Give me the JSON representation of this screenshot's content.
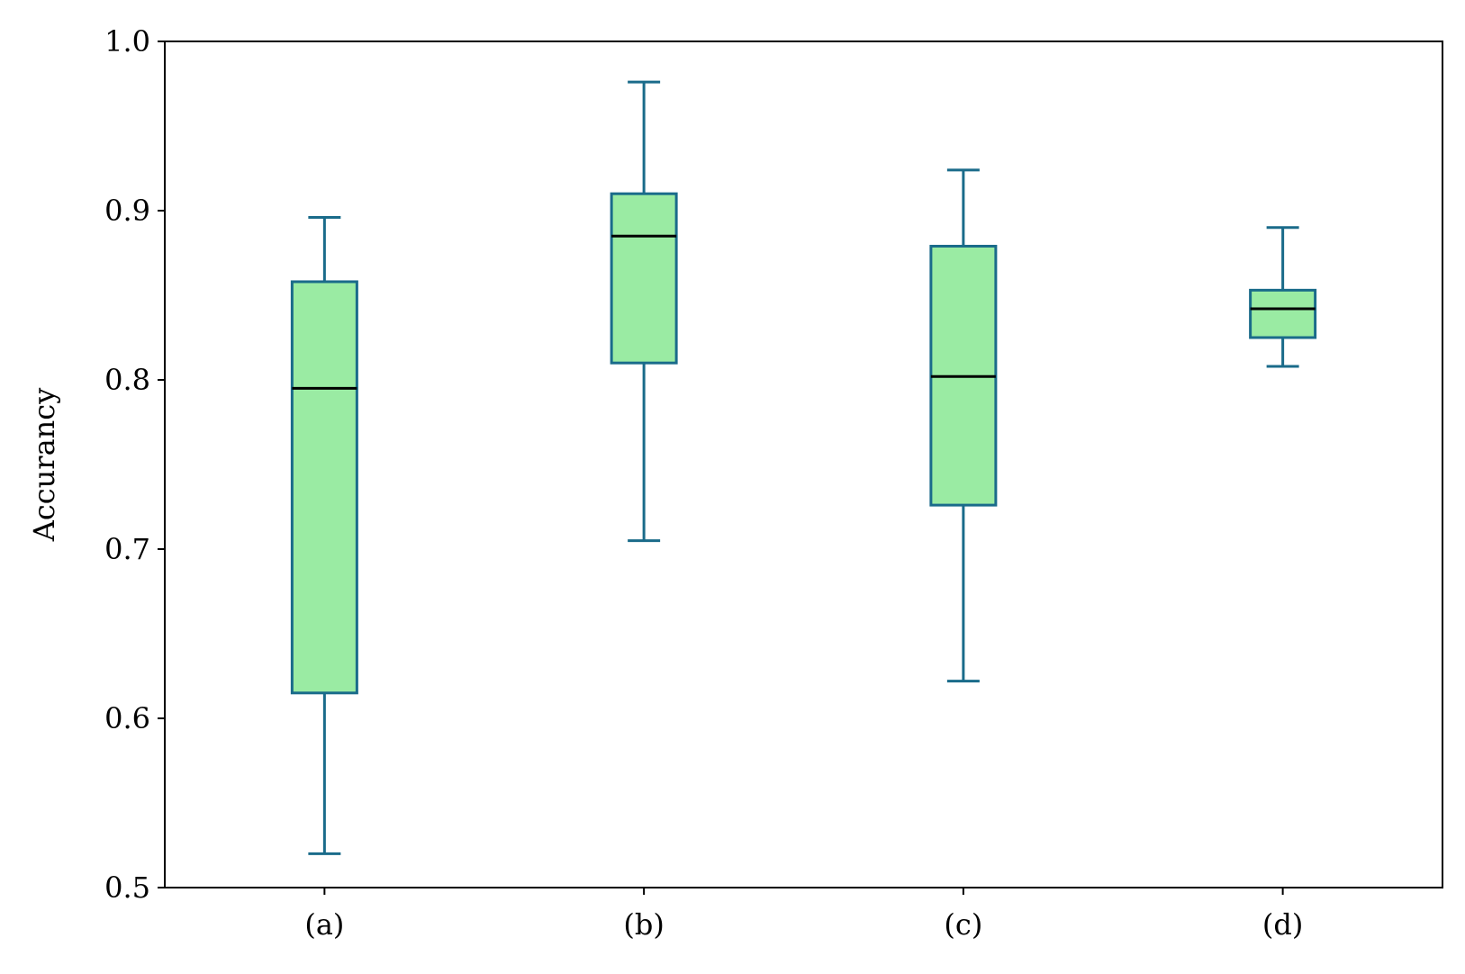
{
  "chart_data": {
    "type": "box",
    "title": "",
    "xlabel": "",
    "ylabel": "Accurancy",
    "ylim": [
      0.5,
      1.0
    ],
    "yticks": [
      "0.5",
      "0.6",
      "0.7",
      "0.8",
      "0.9",
      "1.0"
    ],
    "categories": [
      "(a)",
      "(b)",
      "(c)",
      "(d)"
    ],
    "boxes": [
      {
        "whisker_low": 0.52,
        "q1": 0.615,
        "median": 0.795,
        "q3": 0.858,
        "whisker_high": 0.896
      },
      {
        "whisker_low": 0.705,
        "q1": 0.81,
        "median": 0.885,
        "q3": 0.91,
        "whisker_high": 0.976
      },
      {
        "whisker_low": 0.622,
        "q1": 0.726,
        "median": 0.802,
        "q3": 0.879,
        "whisker_high": 0.924
      },
      {
        "whisker_low": 0.808,
        "q1": 0.825,
        "median": 0.842,
        "q3": 0.853,
        "whisker_high": 0.89
      }
    ],
    "grid": false,
    "colors": {
      "box_fill": "#9aeba3",
      "box_edge": "#1a6b8a",
      "median": "#000000",
      "axes": "#000000"
    }
  }
}
